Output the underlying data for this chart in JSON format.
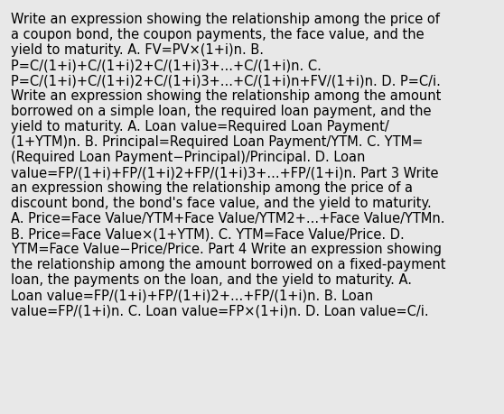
{
  "background_color": "#e8e8e8",
  "text_color": "#000000",
  "font_size": 10.5,
  "font_family": "DejaVu Sans",
  "lines": [
    "Write an expression showing the relationship among the price of",
    "a coupon​ bond, the coupon​ payments, the face​ value, and the",
    "yield to maturity. A. FV=PV×(1+i)n. B.",
    "P=C/(1+i)+C/(1+i)2+C/(1+i)3+...+C/(1+i)n. C.",
    "P=C/(1+i)+C/(1+i)2+C/(1+i)3+...+C/(1+i)n+FV/(1+i)n. D. P=C/i.",
    "Write an expression showing the relationship among the amount",
    "borrowed on a simple​ loan, the required loan​ payment, and the",
    "yield to maturity. A. Loan value=Required Loan Payment/",
    "(1+YTM)n. B. Principal=Required Loan Payment/YTM. C. YTM=",
    "(Required Loan Payment−Principal)/Principal. D. Loan",
    "value=FP/(1+i)+FP/(1+i)2+FP/(1+i)3+...+FP/(1+i)n. Part 3 Write",
    "an expression showing the relationship among the price of a",
    "discount​ bond, the​ bond's face​ value, and the yield to maturity.",
    "A. Price=Face Value/YTM+Face Value/YTM2+...+Face Value/YTMn.",
    "B. Price=Face Value×(1+YTM). C. YTM=Face Value/Price. D.",
    "YTM=Face Value−Price/Price. Part 4 Write an expression showing",
    "the relationship among the amount borrowed on a fixed-payment",
    "loan, the payments on the​ loan, and the yield to maturity. A.",
    "Loan value=FP/(1+i)+FP/(1+i)2+...+FP/(1+i)n. B. Loan",
    "value=FP/(1+i)n. C. Loan value=FP×(1+i)n. D. Loan value=C/i."
  ]
}
